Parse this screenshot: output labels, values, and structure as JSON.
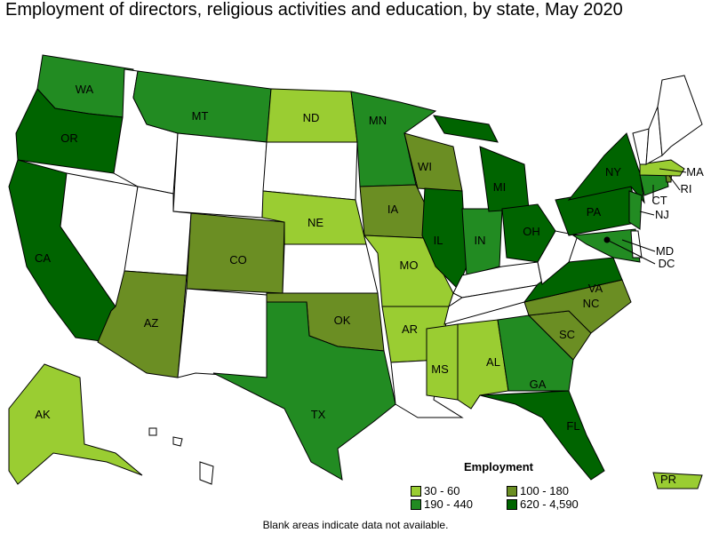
{
  "title": "Employment of directors, religious activities and education, by state, May 2020",
  "legend": {
    "title": "Employment",
    "bins": [
      {
        "label": "30 - 60",
        "color": "#9acd32"
      },
      {
        "label": "100 - 180",
        "color": "#6b8e23"
      },
      {
        "label": "190 - 440",
        "color": "#228b22"
      },
      {
        "label": "620 - 4,590",
        "color": "#006400"
      }
    ]
  },
  "note": "Blank areas indicate data not available.",
  "no_data_color": "#ffffff",
  "states": [
    {
      "abbr": "WA",
      "bin": 2
    },
    {
      "abbr": "OR",
      "bin": 3
    },
    {
      "abbr": "CA",
      "bin": 3
    },
    {
      "abbr": "MT",
      "bin": 2
    },
    {
      "abbr": "ND",
      "bin": 0
    },
    {
      "abbr": "MN",
      "bin": 2
    },
    {
      "abbr": "WI",
      "bin": 1
    },
    {
      "abbr": "MI",
      "bin": 3
    },
    {
      "abbr": "NE",
      "bin": 0
    },
    {
      "abbr": "IA",
      "bin": 1
    },
    {
      "abbr": "IL",
      "bin": 3
    },
    {
      "abbr": "IN",
      "bin": 2
    },
    {
      "abbr": "OH",
      "bin": 3
    },
    {
      "abbr": "NY",
      "bin": 3
    },
    {
      "abbr": "PA",
      "bin": 3
    },
    {
      "abbr": "MA",
      "bin": 0
    },
    {
      "abbr": "RI",
      "bin": 1
    },
    {
      "abbr": "CT",
      "bin": 2
    },
    {
      "abbr": "NJ",
      "bin": 2
    },
    {
      "abbr": "MD",
      "bin": 2
    },
    {
      "abbr": "DC",
      "bin": 3
    },
    {
      "abbr": "VA",
      "bin": 3
    },
    {
      "abbr": "CO",
      "bin": 1
    },
    {
      "abbr": "AZ",
      "bin": 1
    },
    {
      "abbr": "OK",
      "bin": 1
    },
    {
      "abbr": "TX",
      "bin": 2
    },
    {
      "abbr": "MO",
      "bin": 0
    },
    {
      "abbr": "AR",
      "bin": 0
    },
    {
      "abbr": "MS",
      "bin": 0
    },
    {
      "abbr": "AL",
      "bin": 0
    },
    {
      "abbr": "GA",
      "bin": 2
    },
    {
      "abbr": "SC",
      "bin": 1
    },
    {
      "abbr": "NC",
      "bin": 1
    },
    {
      "abbr": "FL",
      "bin": 3
    },
    {
      "abbr": "AK",
      "bin": 0
    },
    {
      "abbr": "PR",
      "bin": 0
    }
  ]
}
